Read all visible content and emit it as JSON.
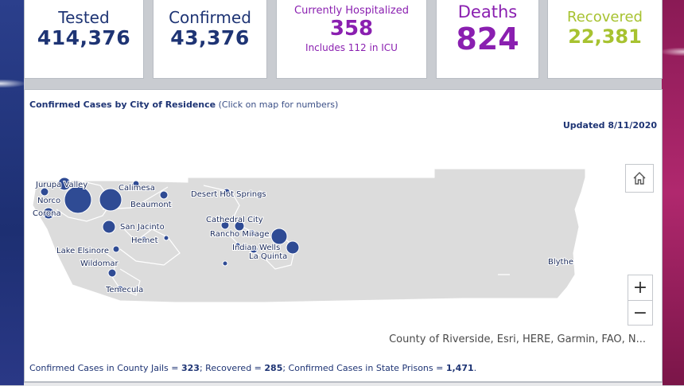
{
  "stats": {
    "tested": {
      "label": "Tested",
      "value": "414,376"
    },
    "confirmed": {
      "label": "Confirmed",
      "value": "43,376"
    },
    "hospitalized": {
      "label": "Currently Hospitalized",
      "value": "358",
      "sub": "Includes 112 in ICU"
    },
    "deaths": {
      "label": "Deaths",
      "value": "824"
    },
    "recovered": {
      "label": "Recovered",
      "value": "22,381"
    }
  },
  "map": {
    "title": "Confirmed Cases by City of Residence",
    "hint": "(Click on map for numbers)",
    "updated": "Updated 8/11/2020",
    "attribution": "County of Riverside, Esri, HERE, Garmin, FAO, N...",
    "controls": {
      "home_icon": "home-icon",
      "zoom_in": "+",
      "zoom_out": "−"
    },
    "cities": [
      {
        "name": "Jurupa Valley"
      },
      {
        "name": "Norco"
      },
      {
        "name": "Corona"
      },
      {
        "name": "Calimesa"
      },
      {
        "name": "Beaumont"
      },
      {
        "name": "San Jacinto"
      },
      {
        "name": "Hemet"
      },
      {
        "name": "Lake Elsinore"
      },
      {
        "name": "Wildomar"
      },
      {
        "name": "Temecula"
      },
      {
        "name": "Desert Hot Springs"
      },
      {
        "name": "Cathedral City"
      },
      {
        "name": "Rancho Mirage"
      },
      {
        "name": "Indian Wells"
      },
      {
        "name": "La Quinta"
      },
      {
        "name": "Blythe"
      }
    ],
    "colors": {
      "bubble": "#2f4b94",
      "land": "#dcdcdc"
    }
  },
  "footer": {
    "jails_label": "Confirmed Cases in County Jails = ",
    "jails_value": "323",
    "recovered_label": "; Recovered = ",
    "recovered_value": "285",
    "prisons_label": "; Confirmed Cases in State Prisons = ",
    "prisons_value": "1,471",
    "end": "."
  }
}
